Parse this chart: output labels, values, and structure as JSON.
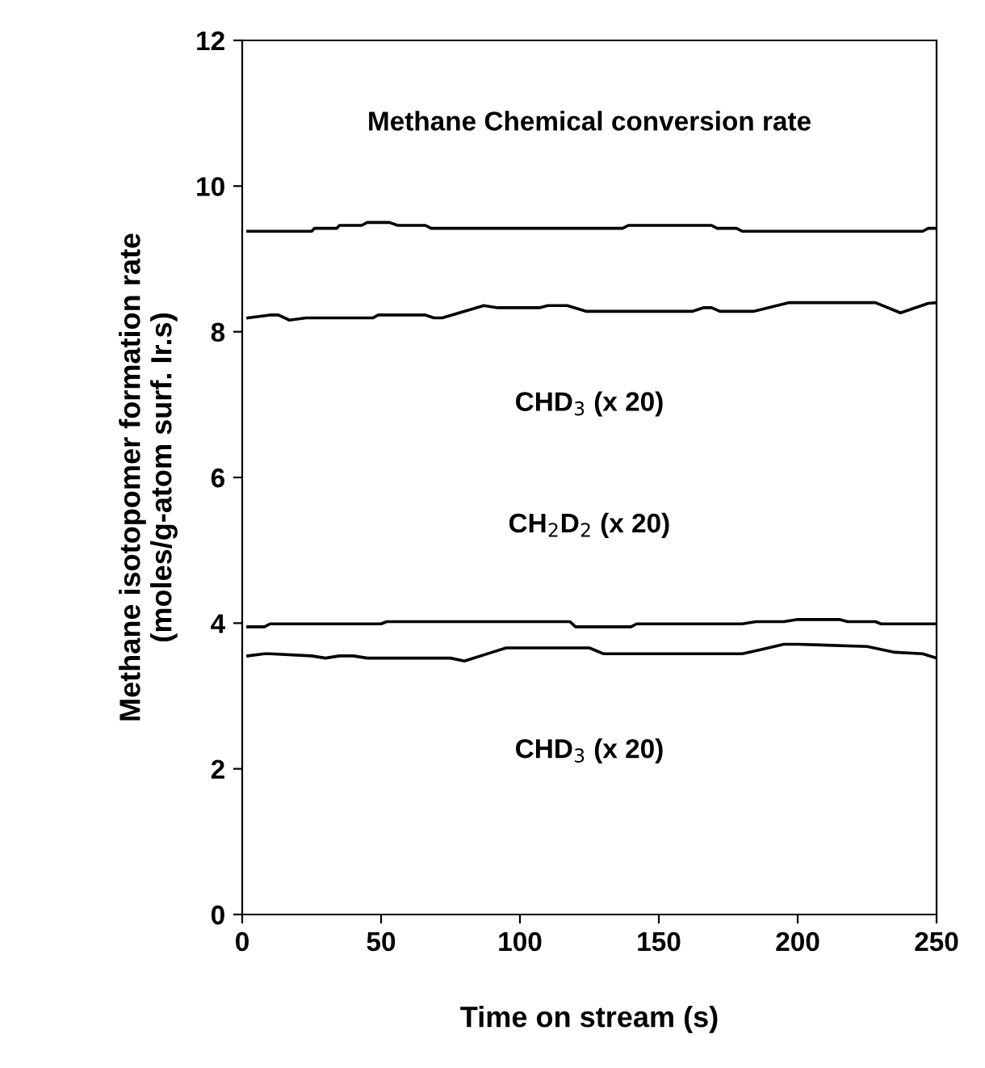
{
  "chart_data": {
    "type": "line",
    "xlabel": "Time on stream (s)",
    "ylabel": "Methane isotopomer formation rate\n(moles/g-atom surf. Ir.s)",
    "xlim": [
      0,
      250
    ],
    "xticks": [
      0,
      50,
      100,
      150,
      200,
      250
    ],
    "ylim": [
      0,
      12
    ],
    "yticks": [
      0,
      2,
      4,
      6,
      8,
      10,
      12
    ],
    "grid": false,
    "legend": false,
    "marker": "none",
    "line_style": "solid",
    "annotations": [
      "Methane Chemical conversion rate",
      "CHD$_{3}$ (x 20)",
      "CH$_{2}$D$_{2}$ (x 20)",
      "CHD$_{3}$ (x 20)"
    ],
    "series": [
      {
        "color": "#000000",
        "x": [
          2,
          25,
          26,
          34,
          35,
          43,
          45,
          53,
          56,
          66,
          68,
          137,
          139,
          169,
          171,
          178,
          180,
          245,
          247,
          250
        ],
        "values": [
          9.38,
          9.38,
          9.42,
          9.42,
          9.46,
          9.46,
          9.5,
          9.5,
          9.46,
          9.46,
          9.42,
          9.42,
          9.46,
          9.46,
          9.42,
          9.42,
          9.38,
          9.38,
          9.42,
          9.42
        ]
      },
      {
        "color": "#000000",
        "x": [
          2,
          10,
          13,
          17,
          23,
          47,
          49,
          66,
          69,
          72,
          87,
          92,
          107,
          110,
          117,
          124,
          162,
          166,
          169,
          172,
          184,
          197,
          228,
          237,
          247,
          250
        ],
        "values": [
          8.19,
          8.23,
          8.23,
          8.16,
          8.19,
          8.19,
          8.23,
          8.23,
          8.19,
          8.19,
          8.36,
          8.33,
          8.33,
          8.36,
          8.36,
          8.28,
          8.28,
          8.33,
          8.33,
          8.28,
          8.28,
          8.4,
          8.4,
          8.26,
          8.39,
          8.4
        ]
      },
      {
        "color": "#000000",
        "x": [
          2,
          8,
          10,
          50,
          52,
          118,
          120,
          140,
          142,
          180,
          185,
          195,
          200,
          215,
          218,
          228,
          230,
          250
        ],
        "values": [
          3.95,
          3.95,
          3.99,
          3.99,
          4.02,
          4.02,
          3.95,
          3.95,
          3.99,
          3.99,
          4.02,
          4.02,
          4.05,
          4.05,
          4.02,
          4.02,
          3.99,
          3.99
        ]
      },
      {
        "color": "#000000",
        "x": [
          2,
          8,
          10,
          25,
          30,
          35,
          40,
          45,
          75,
          80,
          90,
          95,
          125,
          130,
          180,
          185,
          195,
          200,
          225,
          235,
          245,
          250
        ],
        "values": [
          3.55,
          3.58,
          3.58,
          3.55,
          3.52,
          3.55,
          3.55,
          3.52,
          3.52,
          3.48,
          3.6,
          3.66,
          3.66,
          3.58,
          3.58,
          3.62,
          3.71,
          3.71,
          3.68,
          3.6,
          3.58,
          3.52
        ]
      }
    ]
  }
}
